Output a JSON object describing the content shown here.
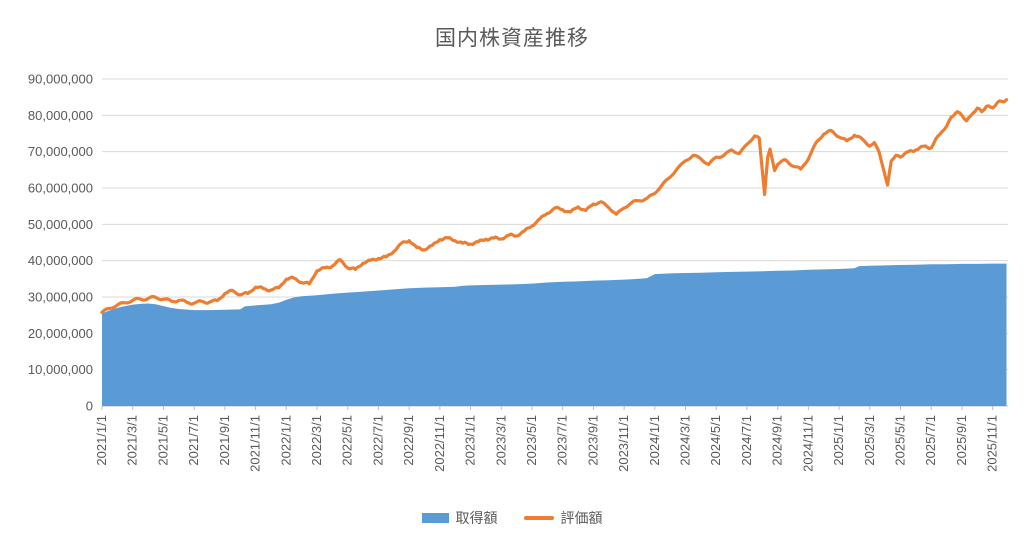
{
  "title": "国内株資産推移",
  "colors": {
    "acquisition_blue": "#5B9BD5",
    "valuation_orange": "#ED7D31",
    "text_gray": "#595959",
    "gridline": "#D9D9D9",
    "axis_line": "#BFBFBF",
    "background": "#FFFFFF"
  },
  "legend": {
    "items": [
      {
        "label": "取得額",
        "marker": "rect",
        "color": "#5B9BD5"
      },
      {
        "label": "評価額",
        "marker": "line",
        "color": "#ED7D31"
      }
    ]
  },
  "chart_data": {
    "type": "area",
    "title": "国内株資産推移",
    "xlabel": "",
    "ylabel": "",
    "ylim": [
      0,
      90000000
    ],
    "y_tick_step": 10000000,
    "y_ticks": [
      "0",
      "10,000,000",
      "20,000,000",
      "30,000,000",
      "40,000,000",
      "50,000,000",
      "60,000,000",
      "70,000,000",
      "80,000,000",
      "90,000,000"
    ],
    "x_ticks": [
      "2021/1/1",
      "2021/3/1",
      "2021/5/1",
      "2021/7/1",
      "2021/9/1",
      "2021/11/1",
      "2022/1/1",
      "2022/3/1",
      "2022/5/1",
      "2022/7/1",
      "2022/9/1",
      "2022/11/1",
      "2023/1/1",
      "2023/3/1",
      "2023/5/1",
      "2023/7/1",
      "2023/9/1",
      "2023/11/1",
      "2024/1/1",
      "2024/3/1",
      "2024/5/1",
      "2024/7/1",
      "2024/9/1",
      "2024/11/1",
      "2025/1/1",
      "2025/3/1",
      "2025/5/1",
      "2025/7/1",
      "2025/9/1",
      "2025/11/1"
    ],
    "x_tick_interval_months": 2,
    "months_domain": [
      0,
      59
    ],
    "grid": "horizontal",
    "legend_position": "bottom",
    "value_unit": "million JPY",
    "series": [
      {
        "name": "取得額",
        "type": "area",
        "color": "#5B9BD5",
        "points": [
          [
            0,
            25.5
          ],
          [
            0.5,
            26.3
          ],
          [
            1,
            27.0
          ],
          [
            1.5,
            27.5
          ],
          [
            2,
            27.9
          ],
          [
            2.5,
            28.1
          ],
          [
            3,
            28.2
          ],
          [
            3.5,
            28.0
          ],
          [
            4,
            27.5
          ],
          [
            4.5,
            27.0
          ],
          [
            5,
            26.7
          ],
          [
            6,
            26.4
          ],
          [
            7,
            26.4
          ],
          [
            8,
            26.5
          ],
          [
            9,
            26.6
          ],
          [
            9.3,
            27.4
          ],
          [
            10,
            27.7
          ],
          [
            11,
            28.0
          ],
          [
            11.5,
            28.4
          ],
          [
            12,
            29.2
          ],
          [
            12.5,
            29.9
          ],
          [
            13,
            30.2
          ],
          [
            14,
            30.5
          ],
          [
            15,
            30.9
          ],
          [
            16,
            31.2
          ],
          [
            17,
            31.5
          ],
          [
            18,
            31.8
          ],
          [
            19,
            32.1
          ],
          [
            20,
            32.4
          ],
          [
            21,
            32.6
          ],
          [
            22,
            32.7
          ],
          [
            23,
            32.8
          ],
          [
            23.5,
            33.1
          ],
          [
            24,
            33.2
          ],
          [
            25,
            33.3
          ],
          [
            26,
            33.4
          ],
          [
            27,
            33.5
          ],
          [
            28,
            33.7
          ],
          [
            29,
            34.0
          ],
          [
            30,
            34.2
          ],
          [
            31,
            34.3
          ],
          [
            32,
            34.5
          ],
          [
            33,
            34.6
          ],
          [
            34,
            34.8
          ],
          [
            35,
            35.0
          ],
          [
            35.5,
            35.2
          ],
          [
            36,
            36.3
          ],
          [
            37,
            36.5
          ],
          [
            38,
            36.6
          ],
          [
            39,
            36.7
          ],
          [
            40,
            36.8
          ],
          [
            41,
            36.9
          ],
          [
            42,
            37.0
          ],
          [
            43,
            37.1
          ],
          [
            44,
            37.2
          ],
          [
            45,
            37.3
          ],
          [
            46,
            37.5
          ],
          [
            47,
            37.6
          ],
          [
            48,
            37.7
          ],
          [
            49,
            37.9
          ],
          [
            49.3,
            38.5
          ],
          [
            50,
            38.6
          ],
          [
            51,
            38.7
          ],
          [
            52,
            38.8
          ],
          [
            53,
            38.9
          ],
          [
            54,
            39.0
          ],
          [
            55,
            39.0
          ],
          [
            56,
            39.1
          ],
          [
            57,
            39.1
          ],
          [
            58,
            39.2
          ],
          [
            58.9,
            39.2
          ]
        ]
      },
      {
        "name": "評価額",
        "type": "line",
        "color": "#ED7D31",
        "points": [
          [
            0,
            25.8
          ],
          [
            0.5,
            26.9
          ],
          [
            1,
            27.8
          ],
          [
            1.5,
            28.4
          ],
          [
            2,
            29.1
          ],
          [
            2.5,
            29.4
          ],
          [
            3,
            29.6
          ],
          [
            3.5,
            29.9
          ],
          [
            4,
            29.4
          ],
          [
            4.5,
            28.9
          ],
          [
            5,
            29.1
          ],
          [
            5.5,
            28.6
          ],
          [
            6,
            28.3
          ],
          [
            6.5,
            28.8
          ],
          [
            7,
            28.6
          ],
          [
            7.5,
            29.0
          ],
          [
            8,
            30.9
          ],
          [
            8.5,
            31.8
          ],
          [
            9,
            30.6
          ],
          [
            9.5,
            31.0
          ],
          [
            10,
            32.7
          ],
          [
            10.5,
            32.3
          ],
          [
            11,
            31.9
          ],
          [
            11.5,
            32.5
          ],
          [
            12,
            34.9
          ],
          [
            12.5,
            35.2
          ],
          [
            13,
            34.0
          ],
          [
            13.5,
            33.6
          ],
          [
            14,
            37.2
          ],
          [
            14.5,
            38.0
          ],
          [
            15,
            38.5
          ],
          [
            15.5,
            40.3
          ],
          [
            16,
            38.0
          ],
          [
            16.5,
            37.6
          ],
          [
            17,
            39.3
          ],
          [
            17.5,
            40.1
          ],
          [
            18,
            40.6
          ],
          [
            18.5,
            41.0
          ],
          [
            19,
            42.5
          ],
          [
            19.5,
            44.8
          ],
          [
            20,
            45.5
          ],
          [
            20.5,
            43.6
          ],
          [
            21,
            43.0
          ],
          [
            21.5,
            44.2
          ],
          [
            22,
            45.8
          ],
          [
            22.5,
            46.3
          ],
          [
            23,
            45.5
          ],
          [
            23.5,
            44.8
          ],
          [
            24,
            44.6
          ],
          [
            24.5,
            45.2
          ],
          [
            25,
            45.9
          ],
          [
            25.5,
            46.2
          ],
          [
            26,
            46.0
          ],
          [
            26.5,
            47.0
          ],
          [
            27,
            46.8
          ],
          [
            27.5,
            48.2
          ],
          [
            28,
            49.5
          ],
          [
            28.5,
            51.5
          ],
          [
            29,
            53.0
          ],
          [
            29.5,
            54.5
          ],
          [
            30,
            54.0
          ],
          [
            30.5,
            53.4
          ],
          [
            31,
            54.8
          ],
          [
            31.5,
            53.8
          ],
          [
            32,
            55.6
          ],
          [
            32.5,
            56.2
          ],
          [
            33,
            54.6
          ],
          [
            33.5,
            52.8
          ],
          [
            34,
            54.5
          ],
          [
            34.5,
            56.0
          ],
          [
            35,
            56.5
          ],
          [
            35.5,
            57.2
          ],
          [
            36,
            58.5
          ],
          [
            36.5,
            61.0
          ],
          [
            37,
            63.0
          ],
          [
            37.5,
            65.5
          ],
          [
            38,
            67.5
          ],
          [
            38.5,
            69.0
          ],
          [
            39,
            68.0
          ],
          [
            39.5,
            66.5
          ],
          [
            40,
            68.5
          ],
          [
            40.5,
            69.0
          ],
          [
            41,
            70.5
          ],
          [
            41.5,
            69.5
          ],
          [
            42,
            72.0
          ],
          [
            42.5,
            74.3
          ],
          [
            42.8,
            73.8
          ],
          [
            43.15,
            58.2
          ],
          [
            43.35,
            68.5
          ],
          [
            43.5,
            70.7
          ],
          [
            43.8,
            64.8
          ],
          [
            44,
            66.5
          ],
          [
            44.5,
            67.8
          ],
          [
            45,
            66.0
          ],
          [
            45.5,
            65.2
          ],
          [
            46,
            68.0
          ],
          [
            46.5,
            72.5
          ],
          [
            47,
            74.8
          ],
          [
            47.5,
            75.8
          ],
          [
            48,
            74.0
          ],
          [
            48.5,
            73.0
          ],
          [
            49,
            74.5
          ],
          [
            49.5,
            73.5
          ],
          [
            50,
            71.5
          ],
          [
            50.3,
            72.5
          ],
          [
            50.6,
            70.0
          ],
          [
            51.15,
            60.8
          ],
          [
            51.4,
            67.5
          ],
          [
            51.7,
            69.0
          ],
          [
            52,
            68.5
          ],
          [
            52.5,
            70.0
          ],
          [
            53,
            70.5
          ],
          [
            53.5,
            71.5
          ],
          [
            54,
            71.0
          ],
          [
            54.3,
            73.5
          ],
          [
            54.7,
            75.5
          ],
          [
            55,
            77.0
          ],
          [
            55.3,
            79.5
          ],
          [
            55.7,
            81.0
          ],
          [
            56,
            80.0
          ],
          [
            56.3,
            78.5
          ],
          [
            56.7,
            80.5
          ],
          [
            57,
            82.0
          ],
          [
            57.3,
            81.0
          ],
          [
            57.6,
            82.5
          ],
          [
            58,
            82.0
          ],
          [
            58.3,
            83.5
          ],
          [
            58.6,
            83.8
          ],
          [
            58.9,
            84.3
          ]
        ]
      }
    ]
  }
}
